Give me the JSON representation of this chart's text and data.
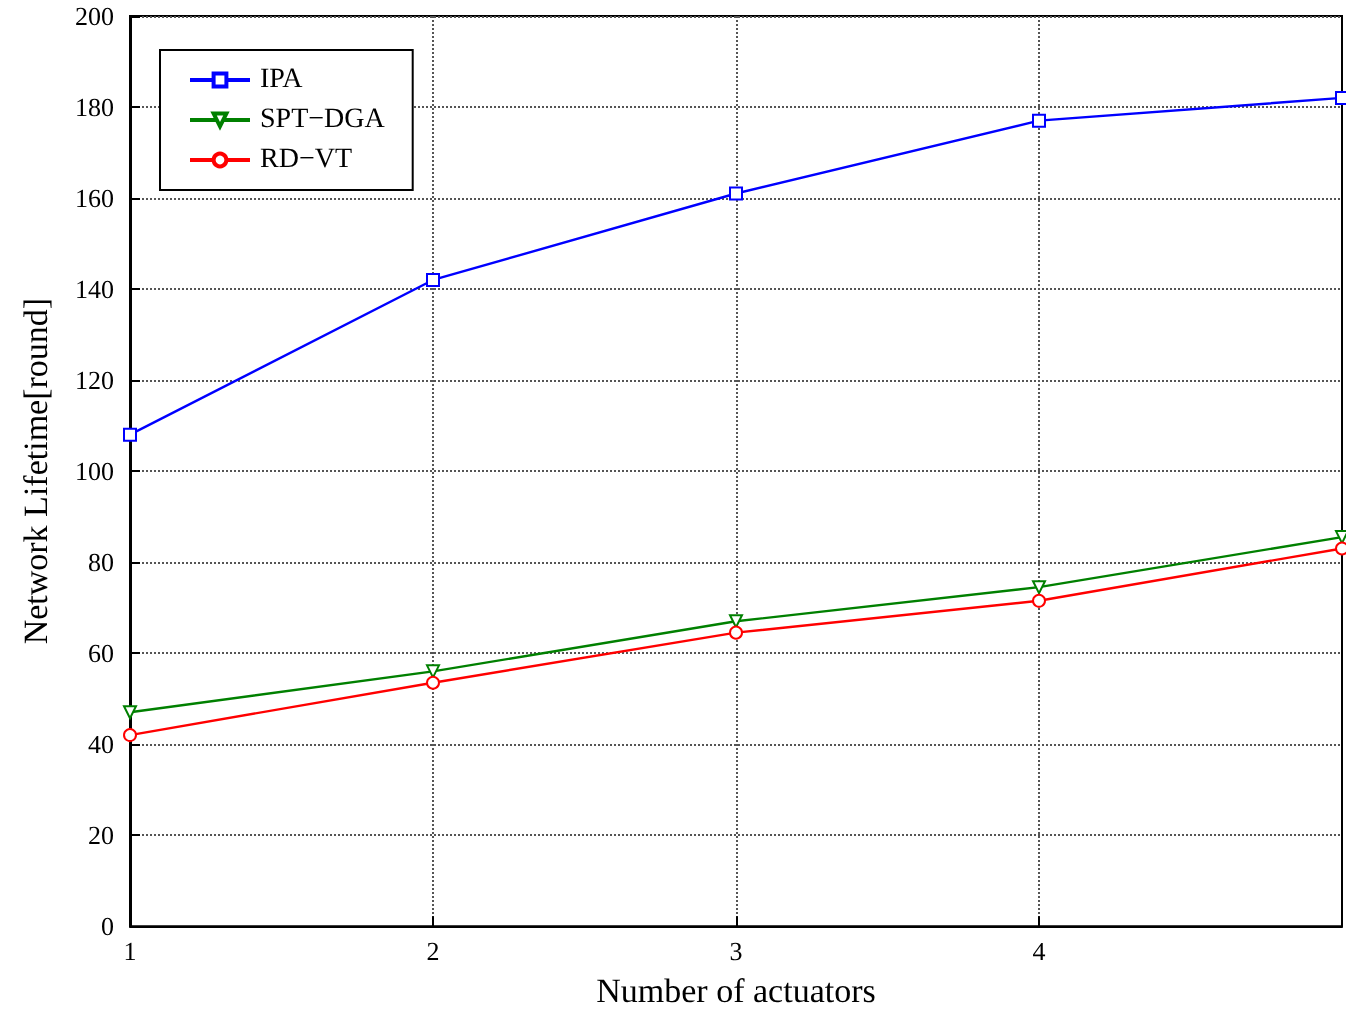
{
  "chart_data": {
    "type": "line",
    "xlabel": "Number of actuators",
    "ylabel": "Network Lifetime[round]",
    "x": [
      1,
      2,
      3,
      4,
      5
    ],
    "series": [
      {
        "name": "IPA",
        "color": "#0000ff",
        "marker": "square",
        "values": [
          108,
          142,
          161,
          177,
          182
        ]
      },
      {
        "name": "SPT−DGA",
        "color": "#008000",
        "marker": "triangle",
        "values": [
          47,
          56,
          67,
          74.5,
          85.5
        ]
      },
      {
        "name": "RD−VT",
        "color": "#ff0000",
        "marker": "circle",
        "values": [
          42,
          53.5,
          64.5,
          71.5,
          83
        ]
      }
    ],
    "xlim": [
      1,
      5
    ],
    "xticks": [
      1,
      2,
      3,
      4
    ],
    "ylim": [
      0,
      200
    ],
    "yticks": [
      0,
      20,
      40,
      60,
      80,
      100,
      120,
      140,
      160,
      180,
      200
    ],
    "grid": true,
    "legend": "top left"
  }
}
